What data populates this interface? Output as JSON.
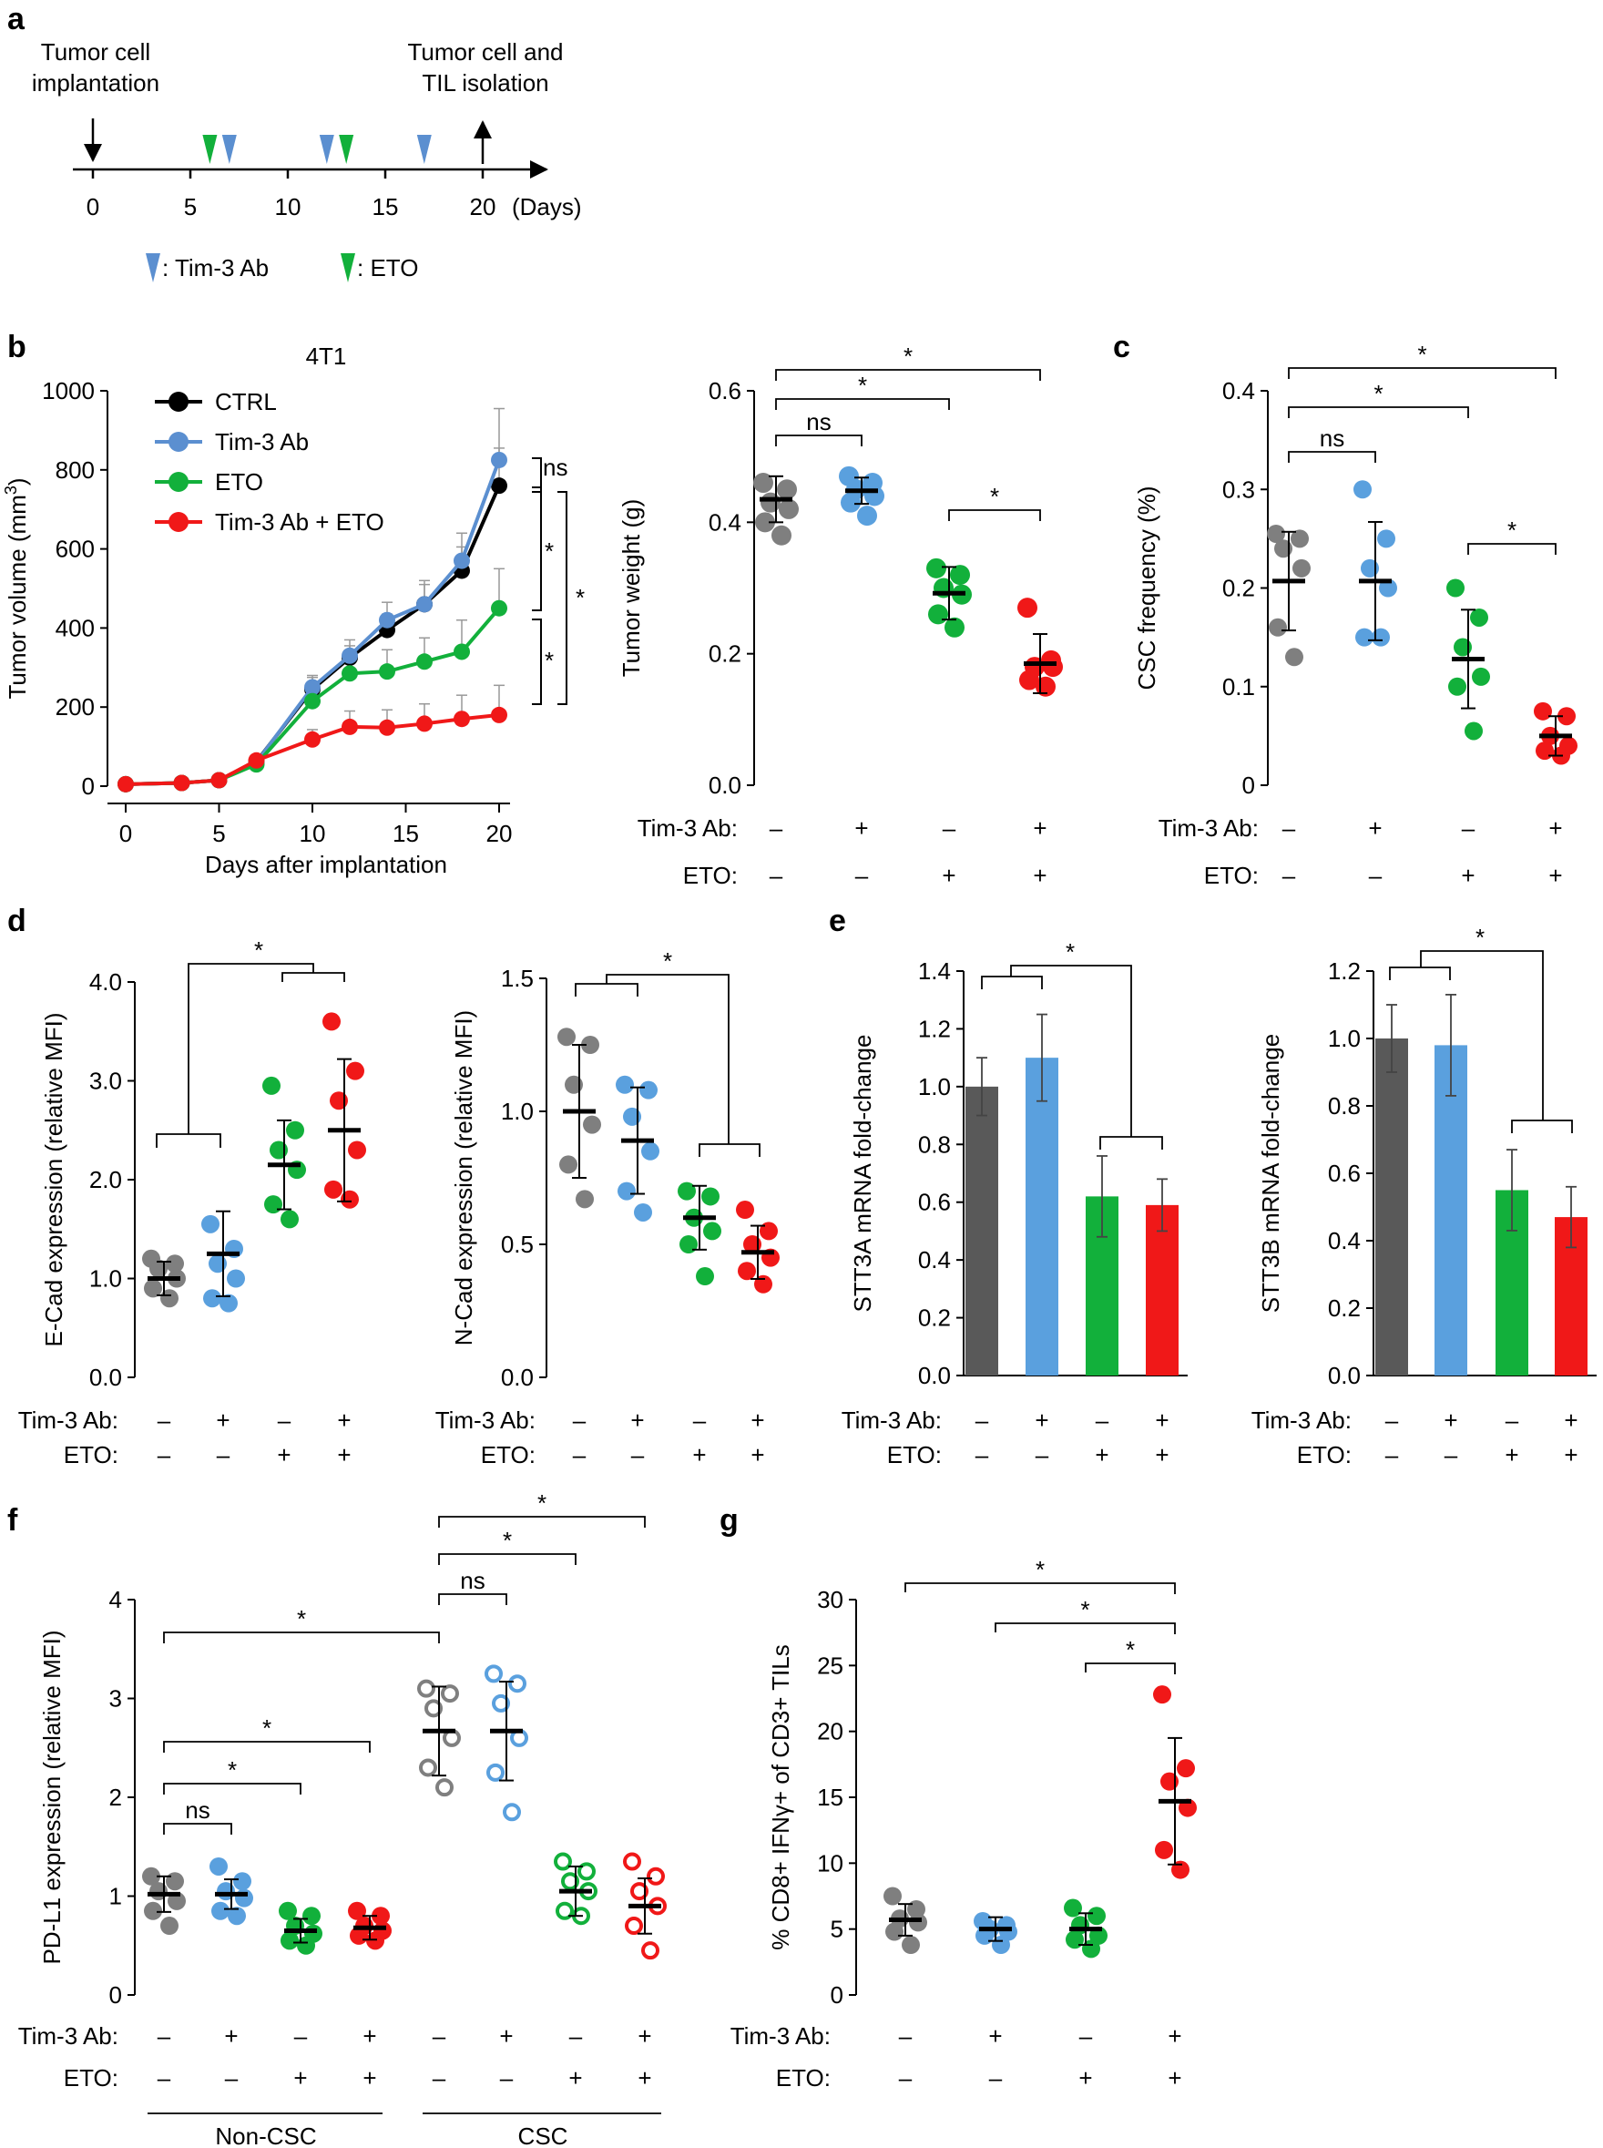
{
  "colors": {
    "ctrl": "#7f7f7f",
    "tim3": "#5aa0de",
    "eto": "#12b03b",
    "combo": "#f01818",
    "bar_ctrl": "#595959",
    "black": "#000000"
  },
  "panel_labels": {
    "a": "a",
    "b": "b",
    "c": "c",
    "d": "d",
    "e": "e",
    "f": "f",
    "g": "g"
  },
  "sign": {
    "plus": "+",
    "minus": "–"
  },
  "rows": {
    "tim3": "Tim-3 Ab:",
    "eto": "ETO:"
  },
  "groups4": [
    {
      "tim3": "–",
      "eto": "–"
    },
    {
      "tim3": "+",
      "eto": "–"
    },
    {
      "tim3": "–",
      "eto": "+"
    },
    {
      "tim3": "+",
      "eto": "+"
    }
  ],
  "sig": {
    "star": "*",
    "ns": "ns"
  },
  "timeline": {
    "left_title": [
      "Tumor cell",
      "implantation"
    ],
    "right_title": [
      "Tumor cell and",
      "TIL isolation"
    ],
    "ticks": [
      "0",
      "5",
      "10",
      "15",
      "20"
    ],
    "unit": "(Days)",
    "legend_tim3": ": Tim-3 Ab",
    "legend_eto": ": ETO",
    "tim3_days": [
      7,
      12,
      17
    ],
    "eto_days": [
      6,
      13
    ],
    "start_day": 0,
    "end_day": 20
  },
  "chart_data": [
    {
      "id": "b-line",
      "type": "line",
      "title": "4T1",
      "xlabel": "Days after implantation",
      "ylabel": "Tumor volume (mm3)",
      "ylabel_parts": [
        "Tumor volume (mm",
        "3",
        ")"
      ],
      "xlim": [
        0,
        20
      ],
      "ylim": [
        0,
        1000
      ],
      "xticks": [
        "0",
        "5",
        "10",
        "15",
        "20"
      ],
      "yticks": [
        "0",
        "200",
        "400",
        "600",
        "800",
        "1000"
      ],
      "x": [
        0,
        3,
        5,
        7,
        10,
        12,
        14,
        16,
        18,
        20
      ],
      "series": [
        {
          "name": "CTRL",
          "color": "#000000",
          "values": [
            5,
            8,
            15,
            62,
            245,
            325,
            395,
            460,
            545,
            760
          ],
          "err": [
            0,
            0,
            0,
            15,
            30,
            30,
            40,
            50,
            60,
            95
          ]
        },
        {
          "name": "Tim-3 Ab",
          "color": "#5b8fd0",
          "values": [
            5,
            8,
            15,
            60,
            250,
            330,
            420,
            460,
            570,
            825
          ],
          "err": [
            0,
            0,
            0,
            15,
            30,
            40,
            45,
            60,
            70,
            130
          ]
        },
        {
          "name": "ETO",
          "color": "#12b03b",
          "values": [
            5,
            8,
            15,
            55,
            215,
            285,
            290,
            315,
            340,
            450
          ],
          "err": [
            0,
            0,
            0,
            15,
            30,
            45,
            55,
            60,
            80,
            100
          ]
        },
        {
          "name": "Tim-3 Ab + ETO",
          "color": "#f01818",
          "values": [
            5,
            8,
            15,
            65,
            118,
            150,
            148,
            158,
            170,
            180
          ],
          "err": [
            0,
            0,
            0,
            10,
            25,
            40,
            45,
            50,
            60,
            75
          ]
        }
      ],
      "annotations": [
        "ns",
        "*",
        "*",
        "*"
      ]
    },
    {
      "id": "b-dot",
      "type": "scatter",
      "ylabel": "Tumor weight (g)",
      "ylim": [
        0,
        0.6
      ],
      "yticks": [
        "0.0",
        "0.2",
        "0.4",
        "0.6"
      ],
      "groups": [
        {
          "points": [
            0.46,
            0.45,
            0.43,
            0.42,
            0.4,
            0.38
          ],
          "mean": 0.435,
          "sd": 0.035,
          "color": "#7f7f7f"
        },
        {
          "points": [
            0.47,
            0.46,
            0.45,
            0.44,
            0.43,
            0.41
          ],
          "mean": 0.448,
          "sd": 0.02,
          "color": "#5aa0de"
        },
        {
          "points": [
            0.33,
            0.32,
            0.3,
            0.29,
            0.26,
            0.24
          ],
          "mean": 0.292,
          "sd": 0.04,
          "color": "#12b03b"
        },
        {
          "points": [
            0.27,
            0.19,
            0.18,
            0.18,
            0.16,
            0.15
          ],
          "mean": 0.185,
          "sd": 0.045,
          "color": "#f01818"
        }
      ]
    },
    {
      "id": "c",
      "type": "scatter",
      "ylabel": "CSC frequency (%)",
      "ylim": [
        0,
        0.4
      ],
      "yticks": [
        "0",
        "0.1",
        "0.2",
        "0.3",
        "0.4"
      ],
      "groups": [
        {
          "points": [
            0.255,
            0.25,
            0.24,
            0.22,
            0.16,
            0.13
          ],
          "mean": 0.207,
          "sd": 0.05,
          "color": "#7f7f7f"
        },
        {
          "points": [
            0.3,
            0.25,
            0.22,
            0.2,
            0.15,
            0.15
          ],
          "mean": 0.207,
          "sd": 0.06,
          "color": "#5aa0de"
        },
        {
          "points": [
            0.2,
            0.17,
            0.14,
            0.11,
            0.1,
            0.055
          ],
          "mean": 0.128,
          "sd": 0.05,
          "color": "#12b03b"
        },
        {
          "points": [
            0.075,
            0.07,
            0.05,
            0.04,
            0.035,
            0.03
          ],
          "mean": 0.05,
          "sd": 0.02,
          "color": "#f01818"
        }
      ]
    },
    {
      "id": "d-ecad",
      "type": "scatter",
      "ylabel": "E-Cad expression (relative MFI)",
      "ylim": [
        0,
        4
      ],
      "yticks": [
        "0.0",
        "1.0",
        "2.0",
        "3.0",
        "4.0"
      ],
      "groups": [
        {
          "points": [
            1.2,
            1.15,
            1.1,
            1.0,
            0.9,
            0.8
          ],
          "mean": 1.0,
          "sd": 0.17,
          "color": "#7f7f7f"
        },
        {
          "points": [
            1.55,
            1.3,
            1.15,
            1.0,
            0.8,
            0.75
          ],
          "mean": 1.25,
          "sd": 0.43,
          "color": "#5aa0de"
        },
        {
          "points": [
            2.95,
            2.5,
            2.3,
            2.1,
            1.75,
            1.6
          ],
          "mean": 2.15,
          "sd": 0.45,
          "color": "#12b03b"
        },
        {
          "points": [
            3.6,
            3.1,
            2.8,
            2.3,
            1.9,
            1.8
          ],
          "mean": 2.5,
          "sd": 0.72,
          "color": "#f01818"
        }
      ]
    },
    {
      "id": "d-ncad",
      "type": "scatter",
      "ylabel": "N-Cad expression (relative MFI)",
      "ylim": [
        0,
        1.5
      ],
      "yticks": [
        "0.0",
        "0.5",
        "1.0",
        "1.5"
      ],
      "groups": [
        {
          "points": [
            1.28,
            1.25,
            1.1,
            0.95,
            0.8,
            0.67
          ],
          "mean": 1.0,
          "sd": 0.25,
          "color": "#7f7f7f"
        },
        {
          "points": [
            1.1,
            1.08,
            0.98,
            0.85,
            0.7,
            0.62
          ],
          "mean": 0.89,
          "sd": 0.2,
          "color": "#5aa0de"
        },
        {
          "points": [
            0.7,
            0.68,
            0.6,
            0.55,
            0.5,
            0.38
          ],
          "mean": 0.6,
          "sd": 0.12,
          "color": "#12b03b"
        },
        {
          "points": [
            0.63,
            0.55,
            0.5,
            0.45,
            0.4,
            0.35
          ],
          "mean": 0.47,
          "sd": 0.1,
          "color": "#f01818"
        }
      ]
    },
    {
      "id": "e-stt3a",
      "type": "bar",
      "ylabel": "STT3A mRNA fold-change",
      "ylim": [
        0,
        1.4
      ],
      "yticks": [
        "0.0",
        "0.2",
        "0.4",
        "0.6",
        "0.8",
        "1.0",
        "1.2",
        "1.4"
      ],
      "values": [
        1.0,
        1.1,
        0.62,
        0.59
      ],
      "err": [
        0.1,
        0.15,
        0.14,
        0.09
      ],
      "colors": [
        "#595959",
        "#5aa0de",
        "#12b03b",
        "#f01818"
      ]
    },
    {
      "id": "e-stt3b",
      "type": "bar",
      "ylabel": "STT3B mRNA fold-change",
      "ylim": [
        0,
        1.2
      ],
      "yticks": [
        "0.0",
        "0.2",
        "0.4",
        "0.6",
        "0.8",
        "1.0",
        "1.2"
      ],
      "values": [
        1.0,
        0.98,
        0.55,
        0.47
      ],
      "err": [
        0.1,
        0.15,
        0.12,
        0.09
      ],
      "colors": [
        "#595959",
        "#5aa0de",
        "#12b03b",
        "#f01818"
      ]
    },
    {
      "id": "f",
      "type": "scatter",
      "ylabel": "PD-L1 expression (relative MFI)",
      "ylim": [
        0,
        4
      ],
      "yticks": [
        "0",
        "1",
        "2",
        "3",
        "4"
      ],
      "group_labels": [
        "Non-CSC",
        "CSC"
      ],
      "groups": [
        {
          "points": [
            1.2,
            1.15,
            1.05,
            0.95,
            0.85,
            0.7
          ],
          "mean": 1.02,
          "sd": 0.18,
          "color": "#7f7f7f",
          "open": false
        },
        {
          "points": [
            1.3,
            1.15,
            1.05,
            0.98,
            0.85,
            0.8
          ],
          "mean": 1.02,
          "sd": 0.15,
          "color": "#5aa0de",
          "open": false
        },
        {
          "points": [
            0.85,
            0.8,
            0.7,
            0.62,
            0.55,
            0.5
          ],
          "mean": 0.65,
          "sd": 0.12,
          "color": "#12b03b",
          "open": false
        },
        {
          "points": [
            0.85,
            0.8,
            0.7,
            0.65,
            0.6,
            0.55
          ],
          "mean": 0.68,
          "sd": 0.12,
          "color": "#f01818",
          "open": false
        },
        {
          "points": [
            3.1,
            3.05,
            2.9,
            2.6,
            2.3,
            2.1
          ],
          "mean": 2.67,
          "sd": 0.45,
          "color": "#7f7f7f",
          "open": true
        },
        {
          "points": [
            3.25,
            3.15,
            2.95,
            2.6,
            2.25,
            1.85
          ],
          "mean": 2.67,
          "sd": 0.5,
          "color": "#5aa0de",
          "open": true
        },
        {
          "points": [
            1.35,
            1.25,
            1.15,
            1.05,
            0.85,
            0.8
          ],
          "mean": 1.05,
          "sd": 0.25,
          "color": "#12b03b",
          "open": true
        },
        {
          "points": [
            1.35,
            1.2,
            1.05,
            0.9,
            0.7,
            0.45
          ],
          "mean": 0.9,
          "sd": 0.28,
          "color": "#f01818",
          "open": true
        }
      ]
    },
    {
      "id": "g",
      "type": "scatter",
      "ylabel": "% CD8+ IFNγ+ of CD3+ TILs",
      "ylim": [
        0,
        30
      ],
      "yticks": [
        "0",
        "5",
        "10",
        "15",
        "20",
        "25",
        "30"
      ],
      "groups": [
        {
          "points": [
            7.5,
            6.5,
            5.8,
            5.5,
            4.8,
            3.8
          ],
          "mean": 5.7,
          "sd": 1.2,
          "color": "#7f7f7f"
        },
        {
          "points": [
            5.6,
            5.3,
            5.0,
            4.8,
            4.5,
            3.8
          ],
          "mean": 5.0,
          "sd": 0.9,
          "color": "#5aa0de"
        },
        {
          "points": [
            6.6,
            6.0,
            5.3,
            4.5,
            4.2,
            3.5
          ],
          "mean": 5.0,
          "sd": 1.2,
          "color": "#12b03b"
        },
        {
          "points": [
            22.8,
            17.2,
            16.2,
            14.2,
            11.0,
            9.5
          ],
          "mean": 14.7,
          "sd": 4.8,
          "color": "#f01818"
        }
      ]
    }
  ]
}
